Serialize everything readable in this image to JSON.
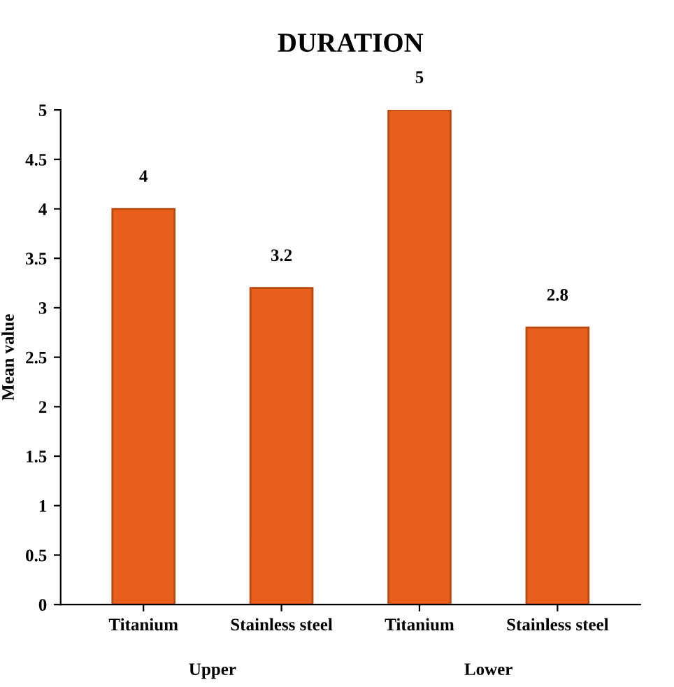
{
  "chart_data": {
    "type": "bar",
    "title": "DURATION",
    "ylabel": "Mean value",
    "categories": [
      "Titanium",
      "Stainless steel",
      "Titanium",
      "Stainless steel"
    ],
    "values": [
      4,
      3.2,
      5,
      2.8
    ],
    "color": "#e8601c",
    "ylim": [
      0,
      5
    ],
    "yticks": [
      0,
      0.5,
      1,
      1.5,
      2,
      2.5,
      3,
      3.5,
      4,
      4.5,
      5
    ],
    "data_labels": true,
    "grid": false,
    "annotations": [
      "Upper",
      "Lower"
    ]
  }
}
